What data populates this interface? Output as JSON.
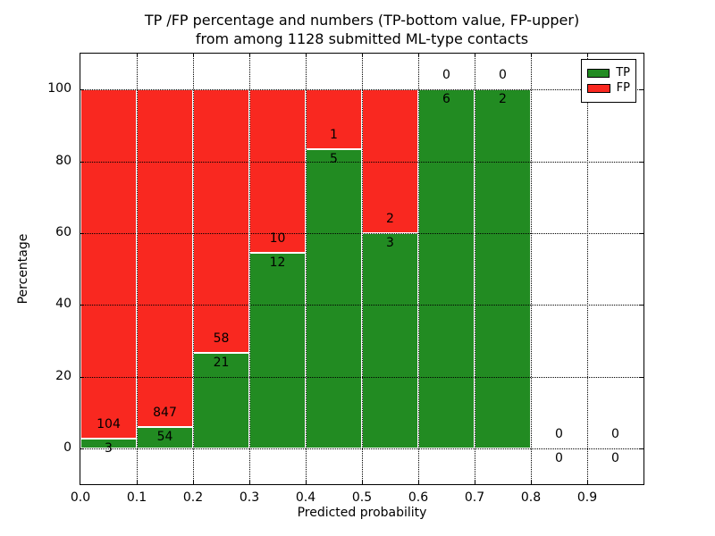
{
  "title": {
    "line1": "TP /FP percentage and numbers (TP-bottom value, FP-upper)",
    "line2": "from among 1128 submitted ML-type contacts"
  },
  "axes": {
    "xlabel": "Predicted probability",
    "ylabel": "Percentage"
  },
  "legend": {
    "items": [
      {
        "label": "TP",
        "color": "#228b22"
      },
      {
        "label": "FP",
        "color": "#f92820"
      }
    ],
    "position": "upper right"
  },
  "chart_data": {
    "type": "bar",
    "stacked": true,
    "title": "TP /FP percentage and numbers (TP-bottom value, FP-upper) from among 1128 submitted ML-type contacts",
    "xlabel": "Predicted probability",
    "ylabel": "Percentage",
    "total_submitted_contacts": 1128,
    "xlim": [
      0.0,
      1.0
    ],
    "ylim": [
      -10,
      110
    ],
    "xticks": [
      "0.0",
      "0.1",
      "0.2",
      "0.3",
      "0.4",
      "0.5",
      "0.6",
      "0.7",
      "0.8",
      "0.9"
    ],
    "yticks": [
      0,
      20,
      40,
      60,
      80,
      100
    ],
    "grid": true,
    "colors": {
      "tp": "#228b22",
      "fp": "#f92820"
    },
    "bins": [
      {
        "range": [
          0.0,
          0.1
        ],
        "tp": 3,
        "fp": 104,
        "tp_pct": 2.8
      },
      {
        "range": [
          0.1,
          0.2
        ],
        "tp": 54,
        "fp": 847,
        "tp_pct": 6.0
      },
      {
        "range": [
          0.2,
          0.3
        ],
        "tp": 21,
        "fp": 58,
        "tp_pct": 26.6
      },
      {
        "range": [
          0.3,
          0.4
        ],
        "tp": 12,
        "fp": 10,
        "tp_pct": 54.5
      },
      {
        "range": [
          0.4,
          0.5
        ],
        "tp": 5,
        "fp": 1,
        "tp_pct": 83.3
      },
      {
        "range": [
          0.5,
          0.6
        ],
        "tp": 3,
        "fp": 2,
        "tp_pct": 60.0
      },
      {
        "range": [
          0.6,
          0.7
        ],
        "tp": 6,
        "fp": 0,
        "tp_pct": 100.0
      },
      {
        "range": [
          0.7,
          0.8
        ],
        "tp": 2,
        "fp": 0,
        "tp_pct": 100.0
      },
      {
        "range": [
          0.8,
          0.9
        ],
        "tp": 0,
        "fp": 0,
        "tp_pct": 0.0
      },
      {
        "range": [
          0.9,
          1.0
        ],
        "tp": 0,
        "fp": 0,
        "tp_pct": 0.0
      }
    ],
    "series": [
      {
        "name": "TP",
        "color": "#228b22",
        "values": [
          3,
          54,
          21,
          12,
          5,
          3,
          6,
          2,
          0,
          0
        ]
      },
      {
        "name": "FP",
        "color": "#f92820",
        "values": [
          104,
          847,
          58,
          10,
          1,
          2,
          0,
          0,
          0,
          0
        ]
      }
    ]
  }
}
